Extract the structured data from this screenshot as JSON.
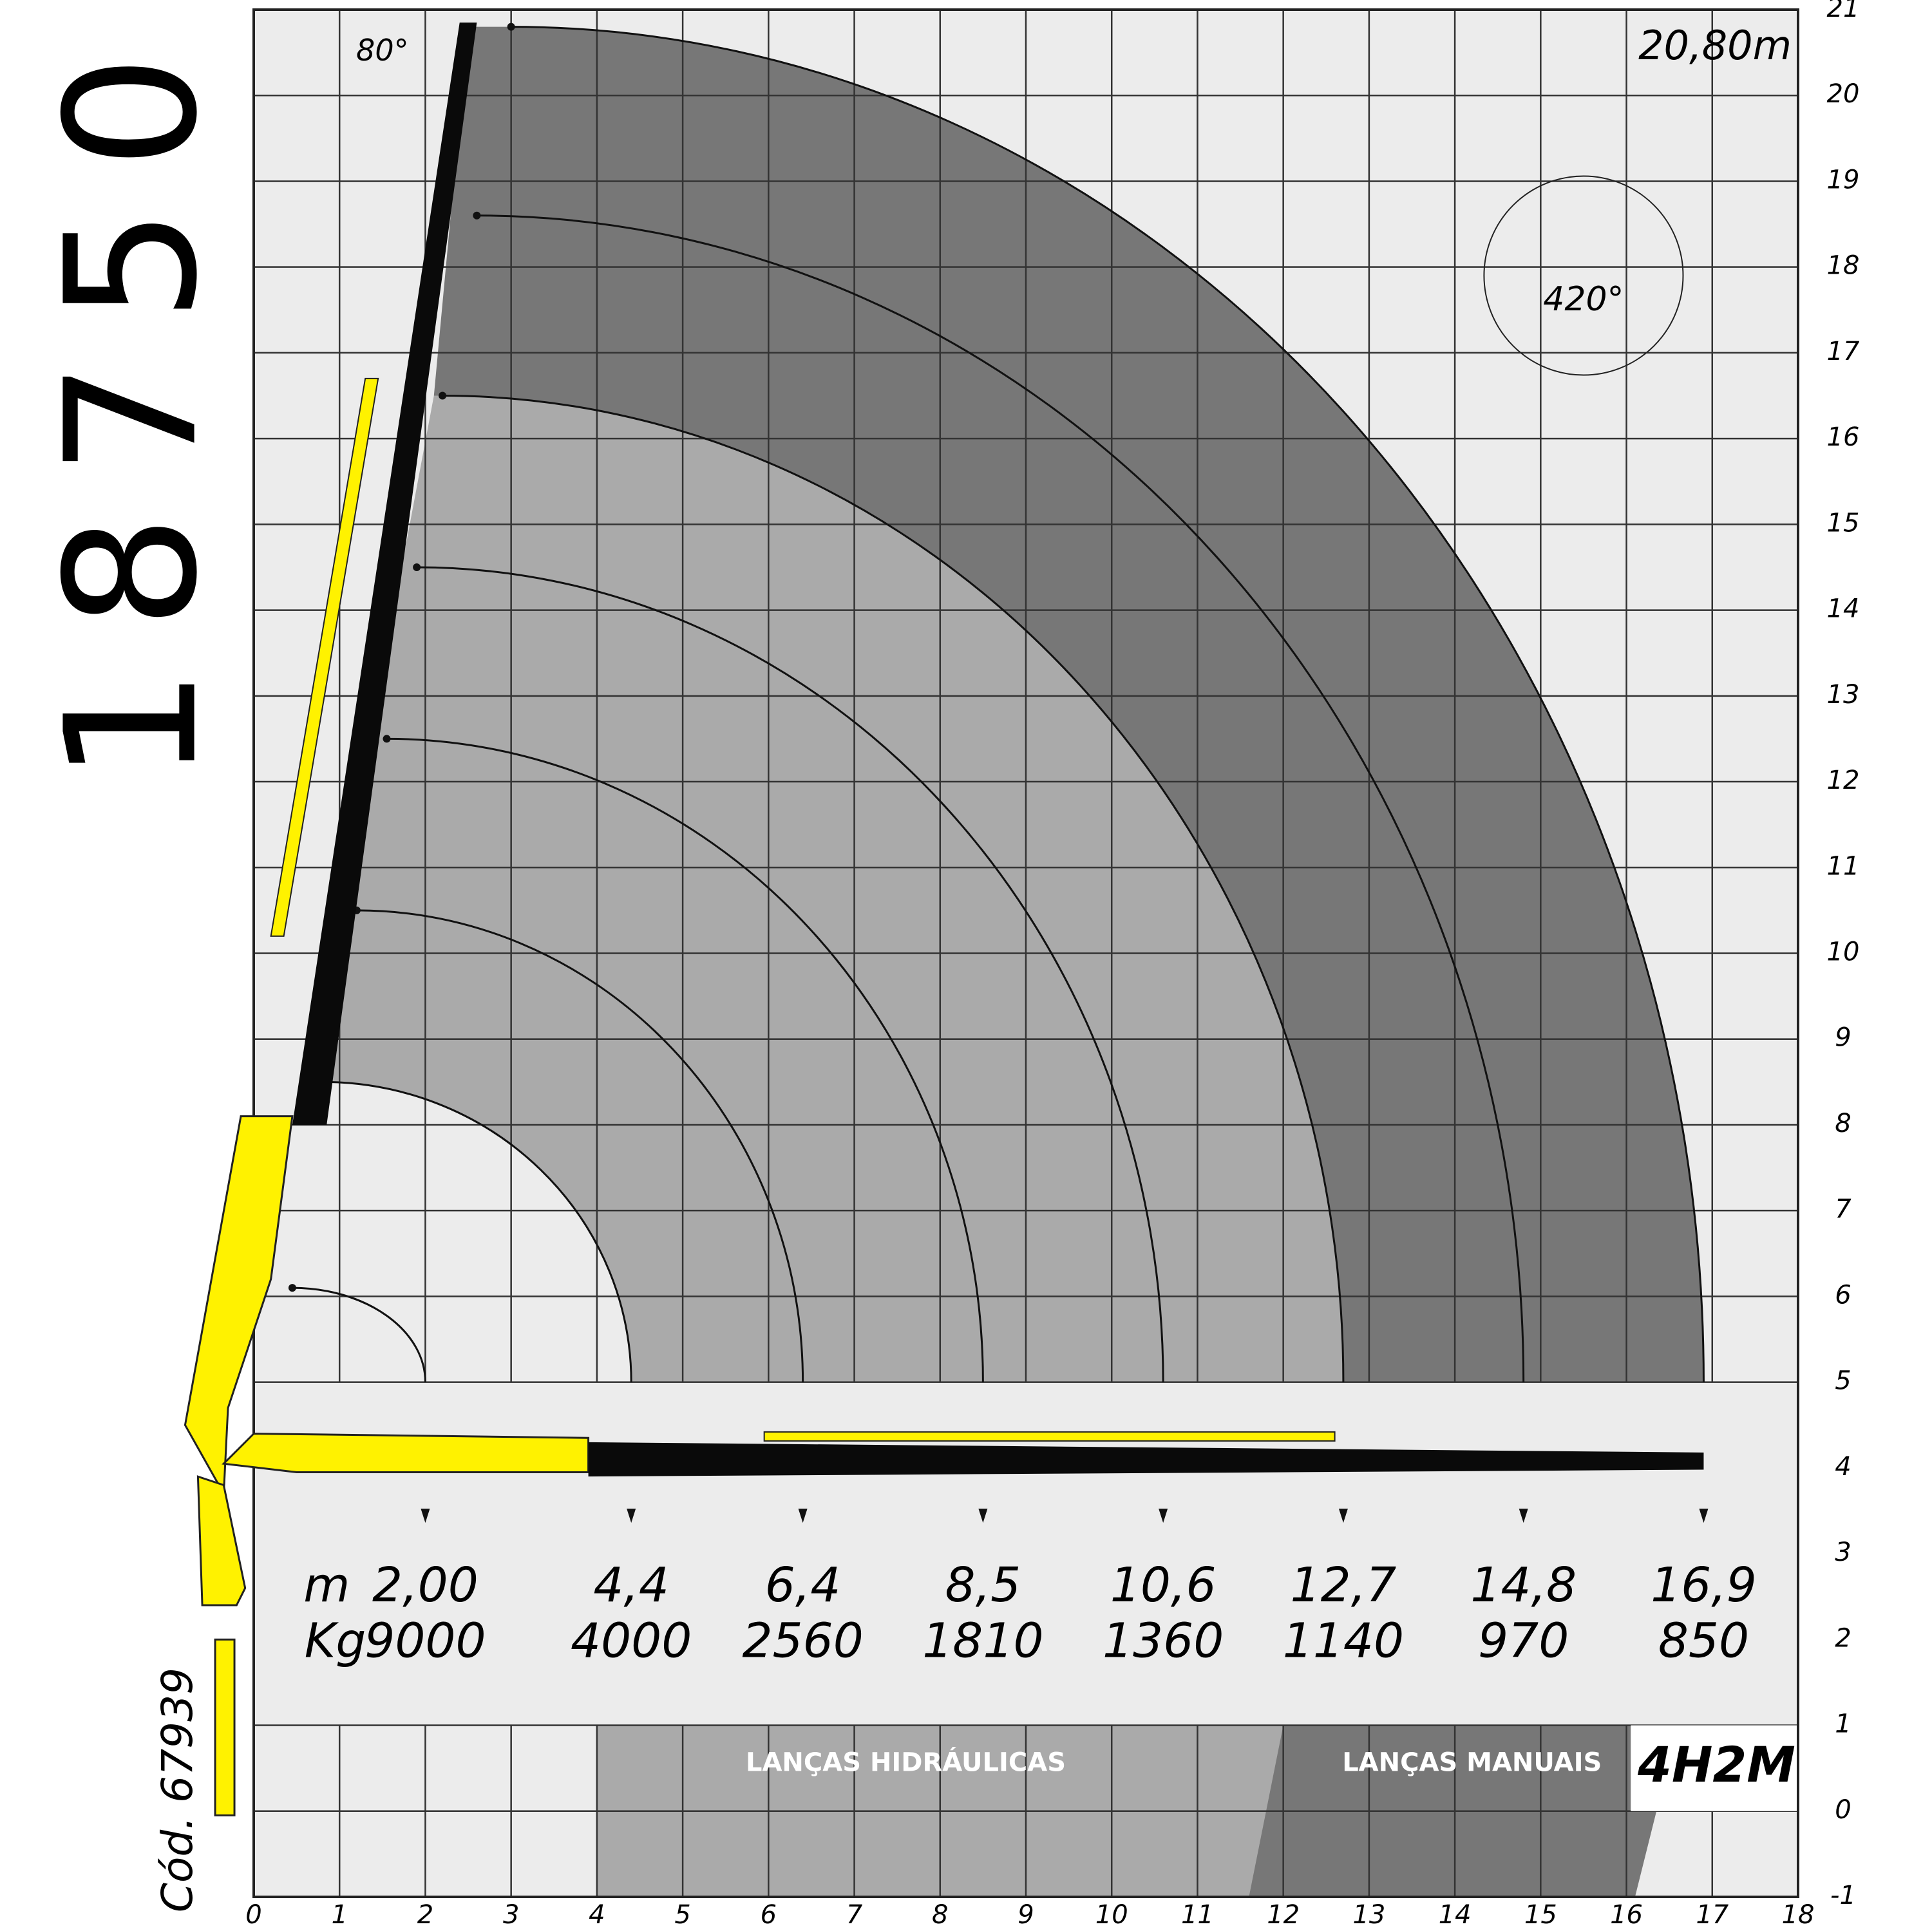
{
  "chart_data": {
    "type": "crane-load",
    "title": "18750",
    "code": "Cód. 67939",
    "boom_angle": "80°",
    "rotation": "420°",
    "max_height": "20,80m",
    "model": "4H2M",
    "section_labels": [
      "LANÇAS HIDRÁULICAS",
      "LANÇAS MANUAIS"
    ],
    "reach": {
      "unit": "m",
      "values": [
        2,
        4.4,
        6.4,
        8.5,
        10.6,
        12.7,
        14.8,
        16.9
      ],
      "value_labels": [
        "2,00",
        "4,4",
        "6,4",
        "8,5",
        "10,6",
        "12,7",
        "14,8",
        "16,9"
      ]
    },
    "load": {
      "unit": "Kg",
      "values": [
        9000,
        4000,
        2560,
        1810,
        1360,
        1140,
        970,
        850
      ]
    },
    "xlim": [
      0,
      18
    ],
    "ylim": [
      -1,
      21
    ],
    "xticks": [
      0,
      1,
      2,
      3,
      4,
      5,
      6,
      7,
      8,
      9,
      10,
      11,
      12,
      13,
      14,
      15,
      16,
      17,
      18
    ],
    "yticks": [
      -1,
      0,
      1,
      2,
      3,
      4,
      5,
      6,
      7,
      8,
      9,
      10,
      11,
      12,
      13,
      14,
      15,
      16,
      17,
      18,
      19,
      20,
      21
    ]
  }
}
